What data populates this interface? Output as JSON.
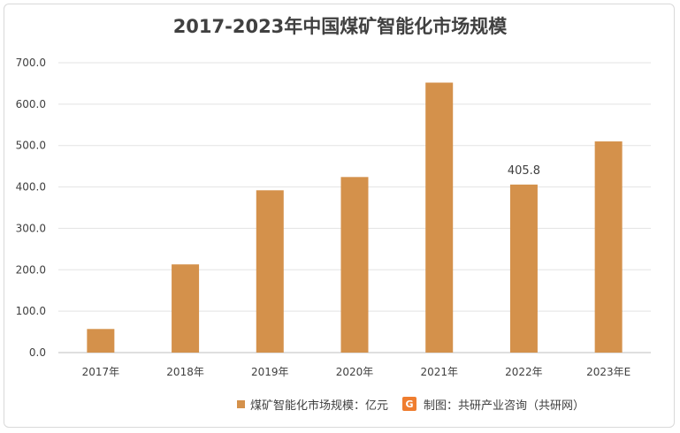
{
  "chart_data": {
    "type": "bar",
    "title": "2017-2023年中国煤矿智能化市场规模",
    "categories": [
      "2017年",
      "2018年",
      "2019年",
      "2020年",
      "2021年",
      "2022年",
      "2023年E"
    ],
    "series": [
      {
        "name": "煤矿智能化市场规模：亿元",
        "values": [
          57,
          213,
          392,
          424,
          652,
          405.8,
          510
        ]
      }
    ],
    "data_labels": [
      null,
      null,
      null,
      null,
      null,
      "405.8",
      null
    ],
    "yticks": [
      "0.0",
      "100.0",
      "200.0",
      "300.0",
      "400.0",
      "500.0",
      "600.0",
      "700.0"
    ],
    "ylim": [
      0,
      700
    ],
    "grid": true,
    "legend_position": "bottom",
    "bar_color": "#d4914b"
  },
  "footer": {
    "source": "制图：共研产业咨询（共研网）",
    "source_logo": "G"
  }
}
